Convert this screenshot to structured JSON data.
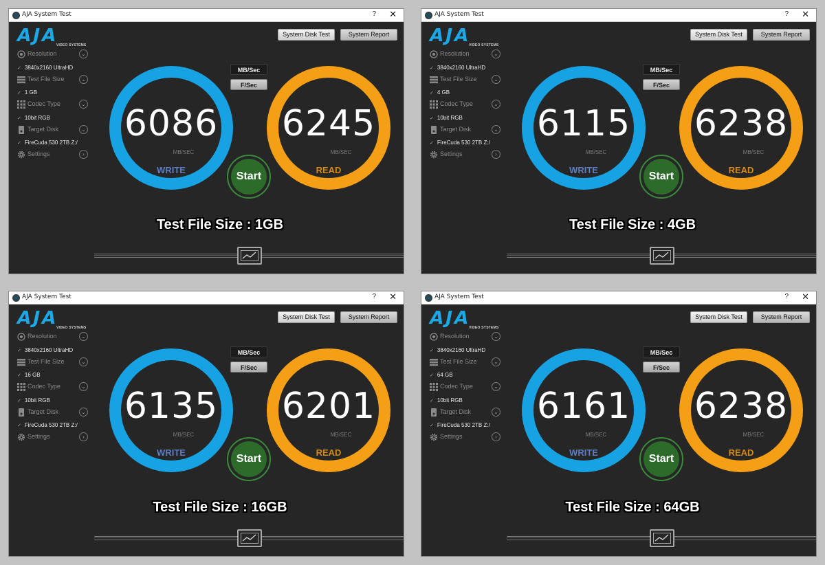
{
  "app": {
    "title": "AJA System Test",
    "help": "?",
    "close": "✕",
    "logo": "AJA",
    "logo_sub": "VIDEO SYSTEMS",
    "system_disk_test": "System Disk Test",
    "system_report": "System Report",
    "resolution_label": "Resolution",
    "resolution_value": "3840x2160 UltraHD",
    "file_size_label": "Test File Size",
    "codec_label": "Codec Type",
    "codec_value": "10bit RGB",
    "target_label": "Target Disk",
    "target_value": "FireCuda 530 2TB Z:/",
    "settings_label": "Settings",
    "unit_mbs": "MB/Sec",
    "unit_fs": "F/Sec",
    "unit_text": "MB/SEC",
    "write_label": "WRITE",
    "read_label": "READ",
    "start_label": "Start",
    "write_color": "#17a3e3",
    "read_color": "#f59f16"
  },
  "windows": [
    {
      "file_size": "1 GB",
      "write": "6086",
      "read": "6245",
      "caption": "Test File Size : 1GB"
    },
    {
      "file_size": "4 GB",
      "write": "6115",
      "read": "6238",
      "caption": "Test File Size : 4GB"
    },
    {
      "file_size": "16 GB",
      "write": "6135",
      "read": "6201",
      "caption": "Test File Size : 16GB"
    },
    {
      "file_size": "64 GB",
      "write": "6161",
      "read": "6238",
      "caption": "Test File Size : 64GB"
    }
  ]
}
